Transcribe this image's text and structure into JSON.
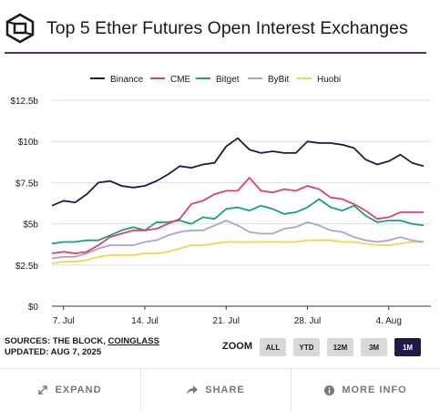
{
  "header": {
    "title": "Top 5 Ether Futures Open Interest Exchanges"
  },
  "footer_info": {
    "sources_prefix": "SOURCES: THE BLOCK,",
    "sources_link": "COINGLASS",
    "updated": "UPDATED: AUG 7, 2025"
  },
  "zoom": {
    "label": "ZOOM",
    "options": [
      "ALL",
      "YTD",
      "12M",
      "3M",
      "1M"
    ],
    "active": "1M"
  },
  "actions": {
    "expand": "EXPAND",
    "share": "SHARE",
    "more_info": "MORE INFO"
  },
  "chart_data": {
    "type": "line",
    "x": [
      "Jul 6",
      "Jul 7",
      "Jul 8",
      "Jul 9",
      "Jul 10",
      "Jul 11",
      "Jul 12",
      "Jul 13",
      "Jul 14",
      "Jul 15",
      "Jul 16",
      "Jul 17",
      "Jul 18",
      "Jul 19",
      "Jul 20",
      "Jul 21",
      "Jul 22",
      "Jul 23",
      "Jul 24",
      "Jul 25",
      "Jul 26",
      "Jul 27",
      "Jul 28",
      "Jul 29",
      "Jul 30",
      "Jul 31",
      "Aug 1",
      "Aug 2",
      "Aug 3",
      "Aug 4",
      "Aug 5",
      "Aug 6",
      "Aug 7"
    ],
    "x_ticks": [
      "7. Jul",
      "14. Jul",
      "21. Jul",
      "28. Jul",
      "4. Aug"
    ],
    "y_ticks": [
      "$0",
      "$2.5b",
      "$5b",
      "$7.5b",
      "$10b",
      "$12.5b"
    ],
    "ylim": [
      0,
      12.5
    ],
    "y_unit": "USD billions",
    "grid": "horizontal",
    "legend": "top-center",
    "series": [
      {
        "name": "Binance",
        "color": "#1e1b4b",
        "values": [
          6.1,
          6.4,
          6.3,
          6.8,
          7.5,
          7.6,
          7.3,
          7.2,
          7.3,
          7.6,
          8.0,
          8.5,
          8.4,
          8.6,
          8.7,
          9.7,
          10.2,
          9.5,
          9.3,
          9.4,
          9.3,
          9.3,
          10.0,
          9.9,
          9.9,
          9.8,
          9.6,
          8.9,
          8.6,
          8.8,
          9.2,
          8.7,
          8.5
        ]
      },
      {
        "name": "CME",
        "color": "#e5405e",
        "values": [
          3.2,
          3.3,
          3.2,
          3.3,
          3.7,
          4.2,
          4.4,
          4.6,
          4.6,
          4.7,
          5.0,
          5.3,
          6.2,
          6.4,
          6.8,
          7.0,
          7.0,
          7.8,
          7.0,
          6.9,
          7.1,
          7.0,
          7.3,
          7.1,
          6.6,
          6.5,
          6.2,
          5.8,
          5.3,
          5.4,
          5.7,
          5.7,
          5.7
        ]
      },
      {
        "name": "Bitget",
        "color": "#14a089",
        "values": [
          3.8,
          3.9,
          3.9,
          4.0,
          4.0,
          4.3,
          4.6,
          4.8,
          4.6,
          5.1,
          5.1,
          5.2,
          5.0,
          5.4,
          5.3,
          5.9,
          6.0,
          5.8,
          6.1,
          5.9,
          5.6,
          5.7,
          6.0,
          6.5,
          6.0,
          5.8,
          6.1,
          5.5,
          5.1,
          5.2,
          5.2,
          5.0,
          4.9
        ]
      },
      {
        "name": "ByBit",
        "color": "#a9a3d8",
        "values": [
          2.9,
          3.0,
          3.0,
          3.2,
          3.5,
          3.7,
          3.7,
          3.7,
          3.9,
          4.0,
          4.3,
          4.5,
          4.6,
          4.6,
          4.9,
          5.2,
          4.9,
          4.5,
          4.4,
          4.4,
          4.7,
          4.8,
          5.1,
          4.9,
          4.6,
          4.5,
          4.2,
          4.0,
          3.9,
          4.0,
          4.2,
          4.0,
          3.9
        ]
      },
      {
        "name": "Huobi",
        "color": "#f6d54a",
        "values": [
          2.6,
          2.7,
          2.7,
          2.8,
          3.0,
          3.1,
          3.1,
          3.1,
          3.2,
          3.2,
          3.3,
          3.5,
          3.7,
          3.7,
          3.8,
          3.9,
          3.9,
          3.9,
          3.9,
          3.9,
          3.9,
          3.9,
          4.0,
          4.0,
          4.0,
          3.9,
          3.9,
          3.8,
          3.7,
          3.7,
          3.8,
          3.9,
          3.9
        ]
      }
    ]
  }
}
